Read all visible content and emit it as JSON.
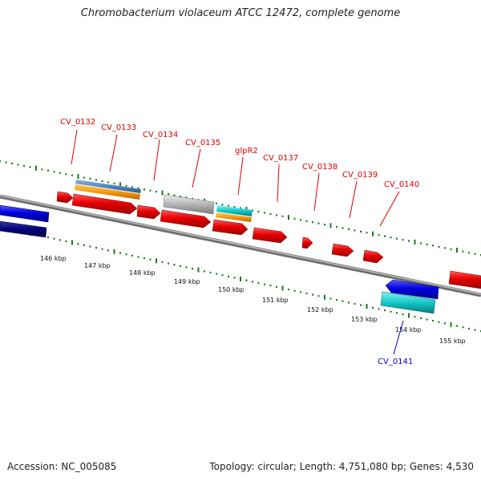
{
  "title": "Chromobacterium violaceum ATCC 12472, complete genome",
  "footer": {
    "accession": "Accession: NC_005085",
    "summary": "Topology: circular; Length: 4,751,080 bp; Genes: 4,530"
  },
  "colors": {
    "forward_cds": "#e60000",
    "reverse_cds": "#0000e0",
    "reverse_dark": "#00007a",
    "cyan_feature": "#14c8c8",
    "orange_feature": "#f59a10",
    "steel_feature": "#4f86c0",
    "grey_feature": "#b4b4b4",
    "backbone": "#8a8a8a",
    "tick": "#1a7a1a"
  },
  "ticks": [
    "146 kbp",
    "147 kbp",
    "148 kbp",
    "149 kbp",
    "150 kbp",
    "151 kbp",
    "152 kbp",
    "153 kbp",
    "154 kbp",
    "155 kbp"
  ],
  "gene_labels": [
    {
      "name": "CV_0132",
      "strand": "+"
    },
    {
      "name": "CV_0133",
      "strand": "+"
    },
    {
      "name": "CV_0134",
      "strand": "+"
    },
    {
      "name": "CV_0135",
      "strand": "+"
    },
    {
      "name": "glpR2",
      "strand": "+"
    },
    {
      "name": "CV_0137",
      "strand": "+"
    },
    {
      "name": "CV_0138",
      "strand": "+"
    },
    {
      "name": "CV_0139",
      "strand": "+"
    },
    {
      "name": "CV_0140",
      "strand": "+"
    },
    {
      "name": "CV_0141",
      "strand": "-"
    }
  ]
}
